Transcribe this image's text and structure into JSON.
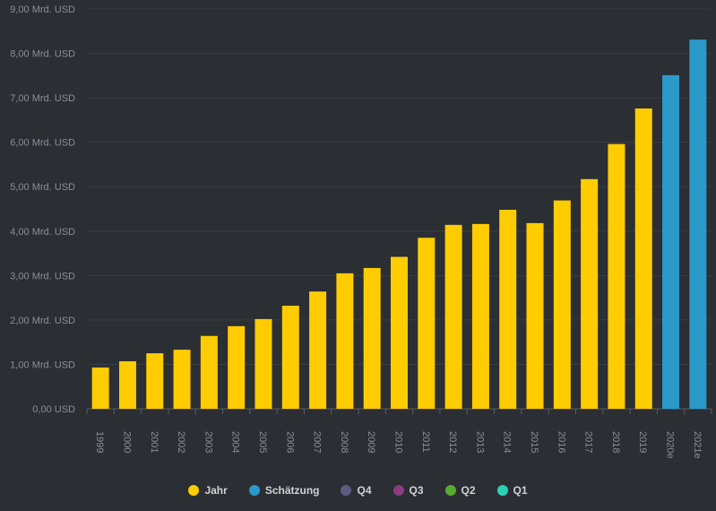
{
  "chart_data": {
    "type": "bar",
    "categories": [
      "1999",
      "2000",
      "2001",
      "2002",
      "2003",
      "2004",
      "2005",
      "2006",
      "2007",
      "2008",
      "2009",
      "2010",
      "2011",
      "2012",
      "2013",
      "2014",
      "2015",
      "2016",
      "2017",
      "2018",
      "2019",
      "2020e",
      "2021e"
    ],
    "values": [
      0.93,
      1.07,
      1.25,
      1.33,
      1.64,
      1.86,
      2.02,
      2.32,
      2.64,
      3.05,
      3.17,
      3.42,
      3.85,
      4.14,
      4.16,
      4.48,
      4.18,
      4.69,
      5.17,
      5.96,
      6.76,
      7.51,
      8.31
    ],
    "series_kind": [
      "Jahr",
      "Jahr",
      "Jahr",
      "Jahr",
      "Jahr",
      "Jahr",
      "Jahr",
      "Jahr",
      "Jahr",
      "Jahr",
      "Jahr",
      "Jahr",
      "Jahr",
      "Jahr",
      "Jahr",
      "Jahr",
      "Jahr",
      "Jahr",
      "Jahr",
      "Jahr",
      "Jahr",
      "Schätzung",
      "Schätzung"
    ],
    "ylim": [
      0,
      9
    ],
    "yticks": [
      0,
      1,
      2,
      3,
      4,
      5,
      6,
      7,
      8,
      9
    ],
    "ytick_labels": [
      "0,00 USD",
      "1,00 Mrd. USD",
      "2,00 Mrd. USD",
      "3,00 Mrd. USD",
      "4,00 Mrd. USD",
      "5,00 Mrd. USD",
      "6,00 Mrd. USD",
      "7,00 Mrd. USD",
      "8,00 Mrd. USD",
      "9,00 Mrd. USD"
    ],
    "grid": true,
    "legend_position": "bottom-center",
    "legend": [
      {
        "label": "Jahr",
        "color": "#ffcc00"
      },
      {
        "label": "Schätzung",
        "color": "#2b9ac9"
      },
      {
        "label": "Q4",
        "color": "#5e5a80"
      },
      {
        "label": "Q3",
        "color": "#8c3c80"
      },
      {
        "label": "Q2",
        "color": "#5aaa32"
      },
      {
        "label": "Q1",
        "color": "#28d2b4"
      }
    ],
    "colors": {
      "Jahr": "#ffcc00",
      "Schätzung": "#2b9ac9"
    }
  }
}
